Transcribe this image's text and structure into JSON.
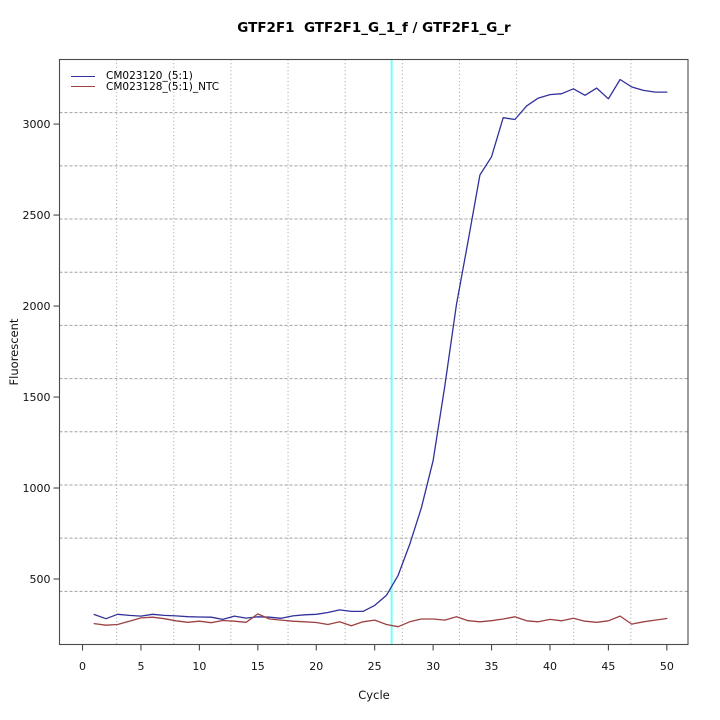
{
  "chart_data": {
    "type": "line",
    "title": "GTF2F1  GTF2F1_G_1_f / GTF2F1_G_r",
    "xlabel": "Cycle",
    "ylabel": "Fluorescent",
    "legend_position": "top-left",
    "x_ticks": [
      0,
      5,
      10,
      15,
      20,
      25,
      30,
      35,
      40,
      45,
      50
    ],
    "y_ticks": [
      500,
      1000,
      1500,
      2000,
      2500,
      3000
    ],
    "x_range": [
      -1.97,
      51.81
    ],
    "y_range": [
      140,
      3355
    ],
    "grid": {
      "nx": 11,
      "ny": 11,
      "color": "#a0a0a0",
      "style": "dotted"
    },
    "threshold_line": {
      "x": 26.45,
      "color": "#70ffff"
    },
    "x": [
      1,
      2,
      3,
      4,
      5,
      6,
      7,
      8,
      9,
      10,
      11,
      12,
      13,
      14,
      15,
      16,
      17,
      18,
      19,
      20,
      21,
      22,
      23,
      24,
      25,
      26,
      27,
      28,
      29,
      30,
      31,
      32,
      33,
      34,
      35,
      36,
      37,
      38,
      39,
      40,
      41,
      42,
      43,
      44,
      45,
      46,
      47,
      48,
      49,
      50
    ],
    "series": [
      {
        "name": "CM023120_(5:1)",
        "color": "#31319b",
        "values": [
          305,
          282,
          306,
          300,
          296,
          306,
          300,
          297,
          293,
          291,
          290,
          278,
          296,
          285,
          292,
          290,
          284,
          297,
          303,
          306,
          316,
          330,
          322,
          322,
          355,
          410,
          520,
          690,
          892,
          1150,
          1560,
          2010,
          2360,
          2720,
          2820,
          3035,
          3025,
          3100,
          3143,
          3162,
          3167,
          3194,
          3158,
          3198,
          3139,
          3245,
          3204,
          3185,
          3176,
          3176
        ]
      },
      {
        "name": "CM023128_(5:1)_NTC",
        "color": "#9c4242",
        "values": [
          255,
          246,
          250,
          268,
          286,
          290,
          282,
          270,
          262,
          268,
          260,
          272,
          268,
          262,
          308,
          280,
          274,
          268,
          265,
          261,
          250,
          265,
          243,
          265,
          274,
          250,
          238,
          265,
          280,
          280,
          274,
          292,
          271,
          265,
          271,
          280,
          292,
          270,
          265,
          278,
          270,
          284,
          268,
          262,
          270,
          296,
          252,
          265,
          274,
          283
        ]
      }
    ],
    "axis_color": "#4a4a4a"
  }
}
